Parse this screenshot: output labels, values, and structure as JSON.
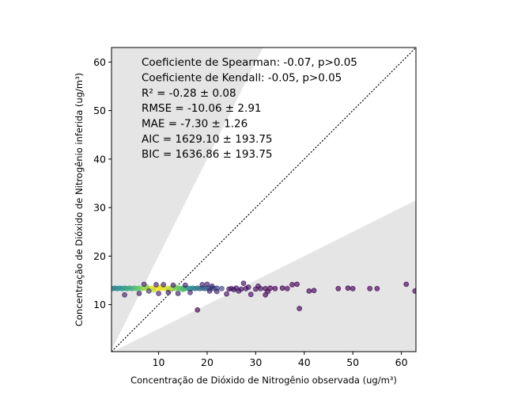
{
  "chart_data": {
    "type": "scatter",
    "xlabel": "Concentração de Dióxido de Nitrogênio observada (ug/m³)",
    "ylabel": "Concentração de Dióxido de Nitrogênio inferida (ug/m³)",
    "xlim": [
      0.3,
      63
    ],
    "ylim": [
      0.3,
      63
    ],
    "x_ticks": [
      10,
      20,
      30,
      40,
      50,
      60
    ],
    "y_ticks": [
      10,
      20,
      30,
      40,
      50,
      60
    ],
    "grid": false,
    "identity_line": true,
    "acceptance_band": {
      "lower_slope": 0.5,
      "upper_slope": 2.0,
      "color": "#e5e5e5"
    },
    "stats": [
      "Coeficiente de Spearman: -0.07, p>0.05",
      "Coeficiente de Kendall: -0.05, p>0.05",
      "R² = -0.28 ± 0.08",
      "RMSE = -10.06 ± 2.91",
      "MAE = -7.30 ± 1.26",
      "AIC = 1629.10 ± 193.75",
      "BIC = 1636.86 ± 193.75"
    ],
    "colormap": "viridis",
    "points": [
      {
        "x": 0.5,
        "y": 13.3,
        "d": 0.4
      },
      {
        "x": 1.0,
        "y": 13.4,
        "d": 0.45
      },
      {
        "x": 1.5,
        "y": 13.3,
        "d": 0.45
      },
      {
        "x": 2.0,
        "y": 13.4,
        "d": 0.5
      },
      {
        "x": 2.5,
        "y": 13.3,
        "d": 0.5
      },
      {
        "x": 3.0,
        "y": 13.4,
        "d": 0.55
      },
      {
        "x": 3.5,
        "y": 13.3,
        "d": 0.55
      },
      {
        "x": 4.0,
        "y": 13.4,
        "d": 0.6
      },
      {
        "x": 4.5,
        "y": 13.3,
        "d": 0.6
      },
      {
        "x": 5.0,
        "y": 13.4,
        "d": 0.65
      },
      {
        "x": 5.5,
        "y": 13.3,
        "d": 0.7
      },
      {
        "x": 6.0,
        "y": 13.4,
        "d": 0.75
      },
      {
        "x": 6.5,
        "y": 13.3,
        "d": 0.8
      },
      {
        "x": 7.0,
        "y": 13.4,
        "d": 0.85
      },
      {
        "x": 7.5,
        "y": 13.3,
        "d": 0.9
      },
      {
        "x": 8.0,
        "y": 13.4,
        "d": 0.92
      },
      {
        "x": 8.5,
        "y": 13.3,
        "d": 0.95
      },
      {
        "x": 9.0,
        "y": 13.4,
        "d": 0.97
      },
      {
        "x": 9.5,
        "y": 13.3,
        "d": 1.0
      },
      {
        "x": 10.0,
        "y": 13.4,
        "d": 1.0
      },
      {
        "x": 10.5,
        "y": 13.3,
        "d": 1.0
      },
      {
        "x": 11.0,
        "y": 13.4,
        "d": 0.98
      },
      {
        "x": 11.5,
        "y": 13.3,
        "d": 0.96
      },
      {
        "x": 12.0,
        "y": 13.4,
        "d": 0.94
      },
      {
        "x": 12.5,
        "y": 13.3,
        "d": 0.9
      },
      {
        "x": 13.0,
        "y": 13.4,
        "d": 0.85
      },
      {
        "x": 13.5,
        "y": 13.3,
        "d": 0.8
      },
      {
        "x": 14.0,
        "y": 13.4,
        "d": 0.75
      },
      {
        "x": 14.5,
        "y": 13.3,
        "d": 0.7
      },
      {
        "x": 15.0,
        "y": 13.4,
        "d": 0.65
      },
      {
        "x": 15.5,
        "y": 13.3,
        "d": 0.6
      },
      {
        "x": 16.0,
        "y": 13.4,
        "d": 0.55
      },
      {
        "x": 16.5,
        "y": 13.3,
        "d": 0.5
      },
      {
        "x": 17.0,
        "y": 13.4,
        "d": 0.45
      },
      {
        "x": 17.5,
        "y": 13.3,
        "d": 0.4
      },
      {
        "x": 18.0,
        "y": 13.4,
        "d": 0.38
      },
      {
        "x": 18.5,
        "y": 13.3,
        "d": 0.35
      },
      {
        "x": 19.0,
        "y": 13.4,
        "d": 0.33
      },
      {
        "x": 19.5,
        "y": 13.3,
        "d": 0.3
      },
      {
        "x": 20.0,
        "y": 13.4,
        "d": 0.3
      },
      {
        "x": 20.5,
        "y": 13.3,
        "d": 0.28
      },
      {
        "x": 21.0,
        "y": 13.4,
        "d": 0.25
      },
      {
        "x": 21.5,
        "y": 13.3,
        "d": 0.25
      },
      {
        "x": 22.0,
        "y": 13.4,
        "d": 0.22
      },
      {
        "x": 23.0,
        "y": 13.3,
        "d": 0.2
      },
      {
        "x": 7.5,
        "y": 13.7,
        "d": 0.8
      },
      {
        "x": 9.0,
        "y": 13.0,
        "d": 0.9
      },
      {
        "x": 10.5,
        "y": 13.6,
        "d": 0.95
      },
      {
        "x": 12.0,
        "y": 13.0,
        "d": 0.9
      },
      {
        "x": 13.5,
        "y": 13.6,
        "d": 0.8
      },
      {
        "x": 15.0,
        "y": 13.1,
        "d": 0.7
      },
      {
        "x": 3.0,
        "y": 12.0,
        "d": 0.1
      },
      {
        "x": 6.0,
        "y": 12.3,
        "d": 0.1
      },
      {
        "x": 7.0,
        "y": 14.2,
        "d": 0.1
      },
      {
        "x": 8.0,
        "y": 12.8,
        "d": 0.15
      },
      {
        "x": 9.5,
        "y": 14.1,
        "d": 0.1
      },
      {
        "x": 10.0,
        "y": 12.3,
        "d": 0.1
      },
      {
        "x": 11.0,
        "y": 14.1,
        "d": 0.1
      },
      {
        "x": 12.0,
        "y": 12.5,
        "d": 0.1
      },
      {
        "x": 13.0,
        "y": 14.0,
        "d": 0.1
      },
      {
        "x": 14.0,
        "y": 12.3,
        "d": 0.1
      },
      {
        "x": 15.5,
        "y": 14.0,
        "d": 0.1
      },
      {
        "x": 16.5,
        "y": 12.5,
        "d": 0.1
      },
      {
        "x": 18.0,
        "y": 8.9,
        "d": 0.0
      },
      {
        "x": 19.0,
        "y": 14.1,
        "d": 0.1
      },
      {
        "x": 20.0,
        "y": 14.2,
        "d": 0.1
      },
      {
        "x": 20.5,
        "y": 12.8,
        "d": 0.1
      },
      {
        "x": 21.0,
        "y": 13.8,
        "d": 0.1
      },
      {
        "x": 22.0,
        "y": 12.7,
        "d": 0.1
      },
      {
        "x": 24.0,
        "y": 12.2,
        "d": 0.05
      },
      {
        "x": 24.5,
        "y": 13.2,
        "d": 0.05
      },
      {
        "x": 25.0,
        "y": 13.3,
        "d": 0.05
      },
      {
        "x": 25.5,
        "y": 13.1,
        "d": 0.05
      },
      {
        "x": 26.0,
        "y": 13.4,
        "d": 0.05
      },
      {
        "x": 26.5,
        "y": 12.8,
        "d": 0.05
      },
      {
        "x": 27.0,
        "y": 13.2,
        "d": 0.05
      },
      {
        "x": 27.5,
        "y": 14.4,
        "d": 0.05
      },
      {
        "x": 28.0,
        "y": 13.3,
        "d": 0.05
      },
      {
        "x": 28.5,
        "y": 13.6,
        "d": 0.05
      },
      {
        "x": 29.0,
        "y": 12.1,
        "d": 0.05
      },
      {
        "x": 30.0,
        "y": 13.2,
        "d": 0.05
      },
      {
        "x": 30.5,
        "y": 13.8,
        "d": 0.05
      },
      {
        "x": 31.0,
        "y": 13.3,
        "d": 0.05
      },
      {
        "x": 32.0,
        "y": 12.0,
        "d": 0.0
      },
      {
        "x": 32.5,
        "y": 12.7,
        "d": 0.0
      },
      {
        "x": 32.0,
        "y": 13.3,
        "d": 0.0
      },
      {
        "x": 33.0,
        "y": 13.4,
        "d": 0.0
      },
      {
        "x": 34.0,
        "y": 13.3,
        "d": 0.0
      },
      {
        "x": 35.5,
        "y": 13.4,
        "d": 0.0
      },
      {
        "x": 36.5,
        "y": 13.3,
        "d": 0.0
      },
      {
        "x": 37.5,
        "y": 14.1,
        "d": 0.0
      },
      {
        "x": 38.5,
        "y": 14.2,
        "d": 0.0
      },
      {
        "x": 39.0,
        "y": 9.2,
        "d": 0.0
      },
      {
        "x": 41.0,
        "y": 12.8,
        "d": 0.0
      },
      {
        "x": 42.0,
        "y": 12.9,
        "d": 0.0
      },
      {
        "x": 47.0,
        "y": 13.3,
        "d": 0.0
      },
      {
        "x": 49.0,
        "y": 13.4,
        "d": 0.0
      },
      {
        "x": 50.0,
        "y": 13.3,
        "d": 0.0
      },
      {
        "x": 53.5,
        "y": 13.3,
        "d": 0.0
      },
      {
        "x": 55.0,
        "y": 13.3,
        "d": 0.0
      },
      {
        "x": 61.0,
        "y": 14.2,
        "d": 0.0
      },
      {
        "x": 62.8,
        "y": 12.8,
        "d": 0.0
      }
    ]
  }
}
